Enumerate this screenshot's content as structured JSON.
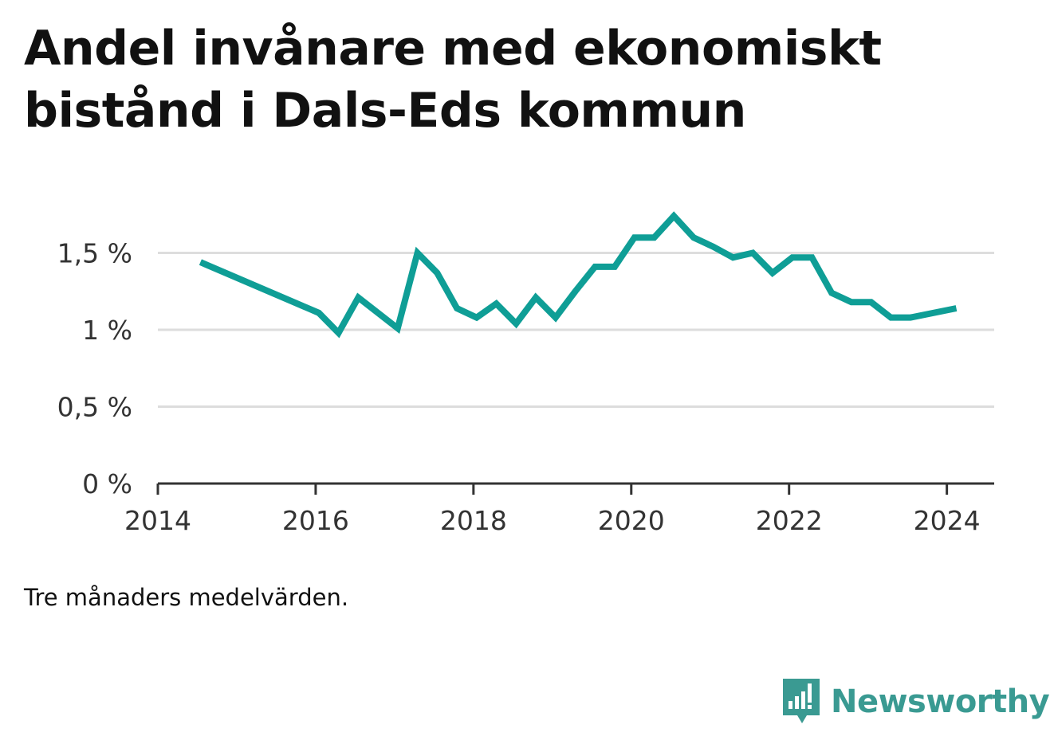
{
  "title": "Andel invånare med ekonomiskt bistånd i Dals-Eds kommun",
  "note": "Tre månaders medelvärden.",
  "brand": {
    "name": "Newsworthy",
    "icon": "newsworthy-logo-icon",
    "color": "#3a9a92"
  },
  "colors": {
    "line": "#0f9e96",
    "grid": "#dddddd",
    "axis": "#333333"
  },
  "chart_data": {
    "type": "line",
    "title": "Andel invånare med ekonomiskt bistånd i Dals-Eds kommun",
    "xlabel": "",
    "ylabel": "",
    "xlim": [
      2014,
      2024.6
    ],
    "ylim": [
      0,
      1.85
    ],
    "x_ticks": [
      2014,
      2016,
      2018,
      2020,
      2022,
      2024
    ],
    "y_ticks": [
      {
        "value": 0,
        "label": "0 %"
      },
      {
        "value": 0.5,
        "label": "0,5 %"
      },
      {
        "value": 1,
        "label": "1 %"
      },
      {
        "value": 1.5,
        "label": "1,5 %"
      }
    ],
    "grid": true,
    "series": [
      {
        "x": [
          2014.54,
          2016.04,
          2016.29,
          2016.54,
          2017.04,
          2017.29,
          2017.54,
          2017.79,
          2018.04,
          2018.29,
          2018.54,
          2018.79,
          2019.04,
          2019.29,
          2019.54,
          2019.79,
          2020.04,
          2020.29,
          2020.54,
          2020.79,
          2021.04,
          2021.29,
          2021.54,
          2021.79,
          2022.04,
          2022.29,
          2022.54,
          2022.79,
          2023.04,
          2023.29,
          2023.54,
          2024.12
        ],
        "values": [
          1.44,
          1.11,
          0.98,
          1.21,
          1.01,
          1.5,
          1.37,
          1.14,
          1.08,
          1.17,
          1.04,
          1.21,
          1.08,
          1.25,
          1.41,
          1.41,
          1.6,
          1.6,
          1.74,
          1.6,
          1.54,
          1.47,
          1.5,
          1.37,
          1.47,
          1.47,
          1.24,
          1.18,
          1.18,
          1.08,
          1.08,
          1.14
        ]
      }
    ]
  }
}
